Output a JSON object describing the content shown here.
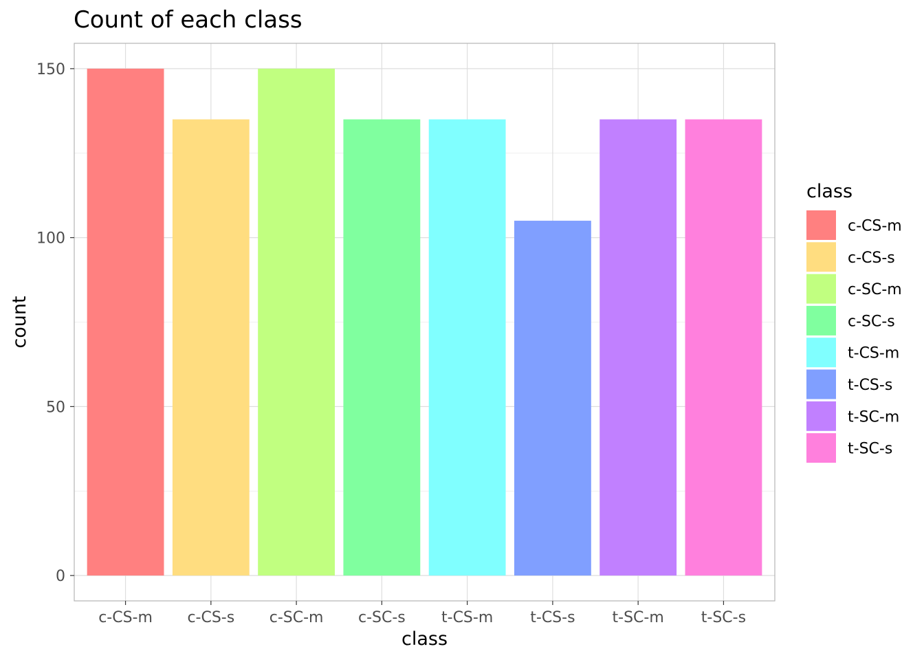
{
  "chart_data": {
    "type": "bar",
    "title": "Count of each class",
    "xlabel": "class",
    "ylabel": "count",
    "categories": [
      "c-CS-m",
      "c-CS-s",
      "c-SC-m",
      "c-SC-s",
      "t-CS-m",
      "t-CS-s",
      "t-SC-m",
      "t-SC-s"
    ],
    "values": [
      150,
      135,
      150,
      135,
      135,
      105,
      135,
      135
    ],
    "colors": [
      "#ff8080",
      "#ffdd80",
      "#c1ff80",
      "#80ff9f",
      "#80ffff",
      "#809fff",
      "#c180ff",
      "#ff80dd"
    ],
    "ylim": [
      -7.5,
      157.5
    ],
    "yticks": [
      0,
      50,
      100,
      150
    ],
    "grid": true,
    "legend": {
      "title": "class",
      "placement": "right",
      "entries": [
        "c-CS-m",
        "c-CS-s",
        "c-SC-m",
        "c-SC-s",
        "t-CS-m",
        "t-CS-s",
        "t-SC-m",
        "t-SC-s"
      ]
    }
  }
}
